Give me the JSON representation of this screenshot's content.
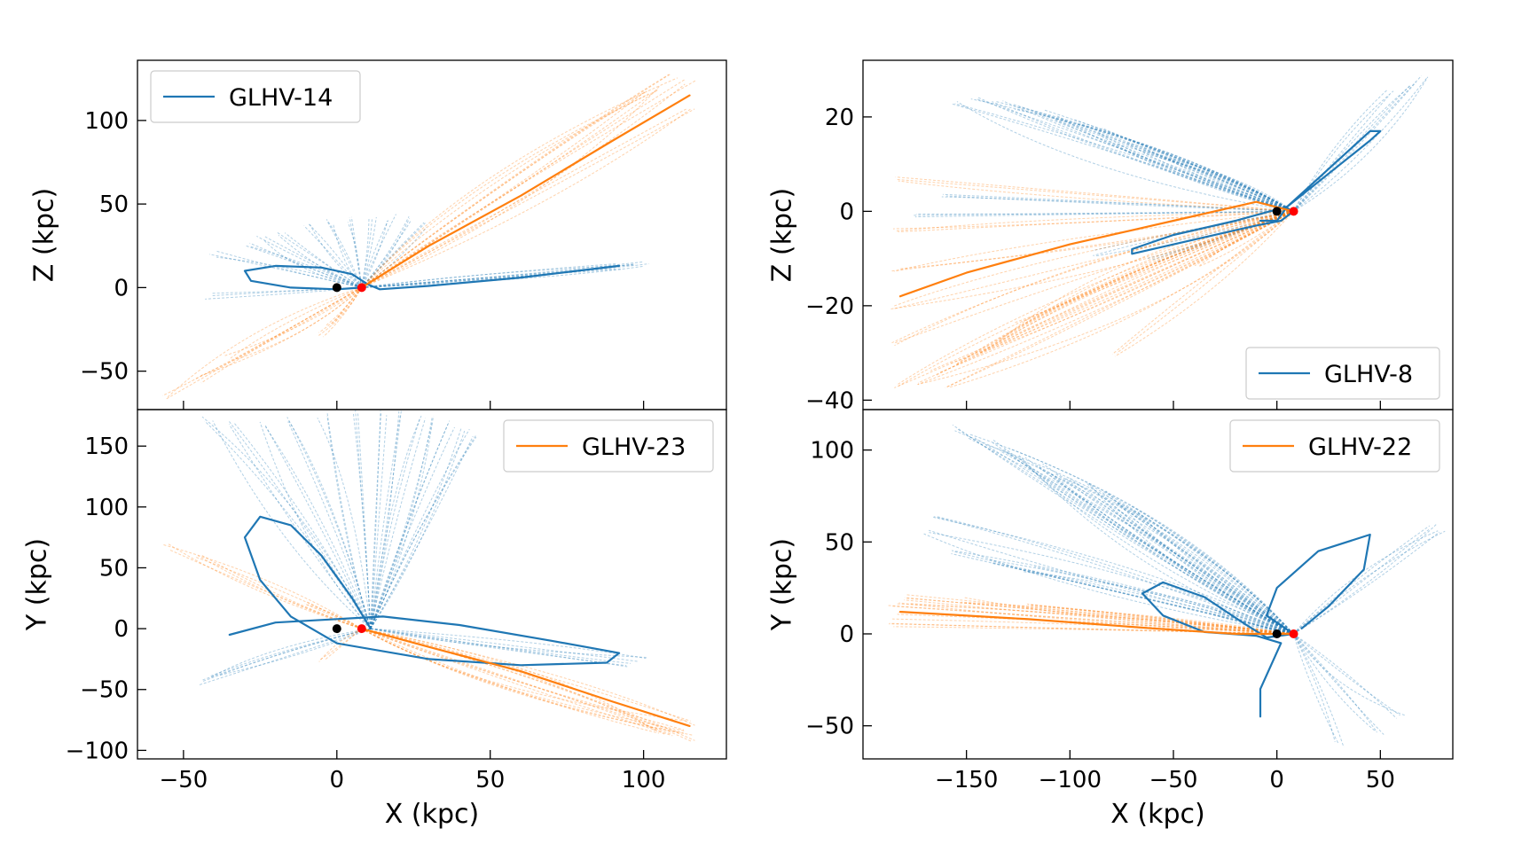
{
  "colors": {
    "blue": "#1f77b4",
    "orange": "#ff7f0e",
    "black": "#000000",
    "red": "#ff0000"
  },
  "chart_data": [
    {
      "type": "line",
      "id": "top-left",
      "xlim": [
        -65,
        127
      ],
      "ylim": [
        -73,
        136
      ],
      "xticks": [
        -50,
        0,
        50,
        100
      ],
      "show_xtick_labels": false,
      "yticks": [
        -50,
        0,
        50,
        100
      ],
      "ytick_labels": [
        "−50",
        "0",
        "50",
        "100"
      ],
      "xlabel": "",
      "ylabel": "Z (kpc)",
      "legend": {
        "label": "GLHV-14",
        "color": "blue",
        "position": "top-left"
      },
      "markers": [
        {
          "x": 0,
          "y": 0,
          "color": "black"
        },
        {
          "x": 8.1,
          "y": 0,
          "color": "red"
        }
      ],
      "series": [
        {
          "color": "blue",
          "style": "solid",
          "points": [
            [
              8,
              0
            ],
            [
              0,
              -1
            ],
            [
              -15,
              0
            ],
            [
              -28,
              4
            ],
            [
              -30,
              10
            ],
            [
              -20,
              13
            ],
            [
              -5,
              12
            ],
            [
              5,
              8
            ],
            [
              10,
              2
            ],
            [
              14,
              -1
            ],
            [
              30,
              1
            ],
            [
              60,
              6
            ],
            [
              92,
              13
            ]
          ]
        },
        {
          "color": "orange",
          "style": "solid",
          "points": [
            [
              8,
              0
            ],
            [
              30,
              25
            ],
            [
              60,
              55
            ],
            [
              90,
              88
            ],
            [
              115,
              115
            ]
          ]
        }
      ],
      "fans": [
        {
          "color": "blue",
          "origin": [
            8,
            0
          ],
          "ends": [
            [
              -42,
              -5
            ],
            [
              -40,
              20
            ],
            [
              -30,
              25
            ],
            [
              -25,
              30
            ],
            [
              -18,
              33
            ],
            [
              -10,
              37
            ],
            [
              -2,
              40
            ],
            [
              5,
              41
            ],
            [
              12,
              42
            ],
            [
              18,
              42
            ],
            [
              25,
              42
            ],
            [
              30,
              38
            ],
            [
              92,
              13
            ],
            [
              96,
              15
            ],
            [
              100,
              14
            ]
          ]
        },
        {
          "color": "orange",
          "origin": [
            8,
            0
          ],
          "ends": [
            [
              115,
              123
            ],
            [
              110,
              126
            ],
            [
              105,
              120
            ],
            [
              100,
              118
            ],
            [
              115,
              108
            ],
            [
              -55,
              -65
            ],
            [
              -45,
              -55
            ],
            [
              -35,
              -42
            ],
            [
              -5,
              -28
            ],
            [
              -2,
              -22
            ]
          ]
        }
      ]
    },
    {
      "type": "line",
      "id": "top-right",
      "xlim": [
        -200,
        85
      ],
      "ylim": [
        -42,
        32
      ],
      "xticks": [
        -150,
        -100,
        -50,
        0,
        50
      ],
      "show_xtick_labels": false,
      "yticks": [
        -40,
        -20,
        0,
        20
      ],
      "ytick_labels": [
        "−40",
        "−20",
        "0",
        "20"
      ],
      "xlabel": "",
      "ylabel": "Z (kpc)",
      "legend": {
        "label": "GLHV-8",
        "color": "blue",
        "position": "bottom-right"
      },
      "markers": [
        {
          "x": 0,
          "y": 0,
          "color": "black"
        },
        {
          "x": 8.1,
          "y": 0,
          "color": "red"
        }
      ],
      "series": [
        {
          "color": "blue",
          "style": "solid",
          "points": [
            [
              8,
              0
            ],
            [
              2,
              -2
            ],
            [
              -10,
              -3
            ],
            [
              -40,
              -6
            ],
            [
              -70,
              -9
            ],
            [
              -70,
              -8
            ],
            [
              -50,
              -5
            ],
            [
              -20,
              -2
            ],
            [
              5,
              1
            ],
            [
              25,
              8
            ],
            [
              45,
              15
            ],
            [
              50,
              17
            ],
            [
              45,
              17
            ],
            [
              30,
              11
            ],
            [
              15,
              5
            ],
            [
              5,
              1
            ],
            [
              0,
              -2
            ],
            [
              -8,
              -2
            ]
          ]
        },
        {
          "color": "orange",
          "style": "solid",
          "points": [
            [
              8,
              0
            ],
            [
              -10,
              2
            ],
            [
              -50,
              -2
            ],
            [
              -100,
              -7
            ],
            [
              -150,
              -13
            ],
            [
              -182,
              -18
            ]
          ]
        }
      ],
      "fans": [
        {
          "color": "blue",
          "origin": [
            8,
            0
          ],
          "ends": [
            [
              -155,
              23
            ],
            [
              -145,
              24
            ],
            [
              -135,
              23
            ],
            [
              -125,
              22
            ],
            [
              -115,
              21
            ],
            [
              -105,
              20
            ],
            [
              -95,
              19
            ],
            [
              -85,
              17
            ],
            [
              -75,
              15
            ],
            [
              -65,
              13
            ],
            [
              -55,
              11
            ],
            [
              -160,
              3
            ],
            [
              -175,
              -1
            ],
            [
              -90,
              -9
            ],
            [
              -60,
              -10
            ],
            [
              55,
              25
            ],
            [
              65,
              27
            ],
            [
              72,
              29
            ]
          ]
        },
        {
          "color": "orange",
          "origin": [
            8,
            0
          ],
          "ends": [
            [
              -185,
              -37
            ],
            [
              -175,
              -36
            ],
            [
              -165,
              -34
            ],
            [
              -155,
              -32
            ],
            [
              -145,
              -30
            ],
            [
              -135,
              -27
            ],
            [
              -125,
              -24
            ],
            [
              -185,
              -28
            ],
            [
              -185,
              -20
            ],
            [
              -185,
              -12
            ],
            [
              -185,
              -4
            ],
            [
              -185,
              7
            ],
            [
              -160,
              -38
            ],
            [
              -40,
              -12
            ],
            [
              -80,
              -30
            ]
          ]
        }
      ]
    },
    {
      "type": "line",
      "id": "bottom-left",
      "xlim": [
        -65,
        127
      ],
      "ylim": [
        -107,
        180
      ],
      "xticks": [
        -50,
        0,
        50,
        100
      ],
      "show_xtick_labels": true,
      "xtick_labels": [
        "−50",
        "0",
        "50",
        "100"
      ],
      "yticks": [
        -100,
        -50,
        0,
        50,
        100,
        150
      ],
      "ytick_labels": [
        "−100",
        "−50",
        "0",
        "50",
        "100",
        "150"
      ],
      "xlabel": "X (kpc)",
      "ylabel": "Y (kpc)",
      "legend": {
        "label": "GLHV-23",
        "color": "orange",
        "position": "top-right"
      },
      "markers": [
        {
          "x": 0,
          "y": 0,
          "color": "black"
        },
        {
          "x": 8.1,
          "y": 0,
          "color": "red"
        }
      ],
      "series": [
        {
          "color": "blue",
          "style": "solid",
          "points": [
            [
              11,
              0
            ],
            [
              5,
              25
            ],
            [
              -5,
              60
            ],
            [
              -15,
              85
            ],
            [
              -25,
              92
            ],
            [
              -30,
              75
            ],
            [
              -25,
              40
            ],
            [
              -15,
              10
            ],
            [
              0,
              -12
            ],
            [
              30,
              -25
            ],
            [
              60,
              -30
            ],
            [
              88,
              -28
            ],
            [
              92,
              -20
            ],
            [
              70,
              -10
            ],
            [
              40,
              3
            ],
            [
              15,
              10
            ],
            [
              -20,
              5
            ],
            [
              -35,
              -5
            ]
          ]
        },
        {
          "color": "orange",
          "style": "solid",
          "points": [
            [
              8,
              0
            ],
            [
              30,
              -15
            ],
            [
              60,
              -35
            ],
            [
              90,
              -60
            ],
            [
              115,
              -80
            ]
          ]
        }
      ],
      "fans": [
        {
          "color": "blue",
          "origin": [
            11,
            0
          ],
          "ends": [
            [
              -42,
              172
            ],
            [
              -35,
              170
            ],
            [
              -25,
              168
            ],
            [
              -15,
              172
            ],
            [
              -5,
              175
            ],
            [
              5,
              178
            ],
            [
              15,
              178
            ],
            [
              22,
              177
            ],
            [
              28,
              175
            ],
            [
              33,
              172
            ],
            [
              38,
              168
            ],
            [
              42,
              165
            ],
            [
              46,
              158
            ],
            [
              -45,
              -45
            ],
            [
              -40,
              -40
            ],
            [
              95,
              -30
            ],
            [
              100,
              -25
            ]
          ]
        },
        {
          "color": "orange",
          "origin": [
            8,
            0
          ],
          "ends": [
            [
              115,
              -90
            ],
            [
              115,
              -84
            ],
            [
              115,
              -78
            ],
            [
              110,
              -88
            ],
            [
              105,
              -85
            ],
            [
              -55,
              68
            ],
            [
              -45,
              60
            ],
            [
              -10,
              20
            ],
            [
              -5,
              -25
            ]
          ]
        }
      ]
    },
    {
      "type": "line",
      "id": "bottom-right",
      "xlim": [
        -200,
        85
      ],
      "ylim": [
        -68,
        122
      ],
      "xticks": [
        -150,
        -100,
        -50,
        0,
        50
      ],
      "show_xtick_labels": true,
      "xtick_labels": [
        "−150",
        "−100",
        "−50",
        "0",
        "50"
      ],
      "yticks": [
        -50,
        0,
        50,
        100
      ],
      "ytick_labels": [
        "−50",
        "0",
        "50",
        "100"
      ],
      "xlabel": "X (kpc)",
      "ylabel": "Y (kpc)",
      "legend": {
        "label": "GLHV-22",
        "color": "orange",
        "position": "top-right"
      },
      "markers": [
        {
          "x": 0,
          "y": 0,
          "color": "black"
        },
        {
          "x": 8.1,
          "y": 0,
          "color": "red"
        }
      ],
      "series": [
        {
          "color": "blue",
          "style": "solid",
          "points": [
            [
              8,
              0
            ],
            [
              -5,
              -2
            ],
            [
              -15,
              5
            ],
            [
              -35,
              20
            ],
            [
              -55,
              28
            ],
            [
              -65,
              22
            ],
            [
              -55,
              10
            ],
            [
              -35,
              1
            ],
            [
              -10,
              -1
            ],
            [
              2,
              -5
            ],
            [
              -8,
              -30
            ],
            [
              -8,
              -45
            ]
          ]
        },
        {
          "color": "blue",
          "style": "solid",
          "points": [
            [
              8,
              0
            ],
            [
              -5,
              10
            ],
            [
              0,
              25
            ],
            [
              20,
              45
            ],
            [
              45,
              54
            ],
            [
              42,
              35
            ],
            [
              25,
              15
            ],
            [
              12,
              3
            ]
          ]
        },
        {
          "color": "orange",
          "style": "solid",
          "points": [
            [
              8,
              0
            ],
            [
              -20,
              0
            ],
            [
              -60,
              3
            ],
            [
              -120,
              8
            ],
            [
              -182,
              12
            ]
          ]
        }
      ],
      "fans": [
        {
          "color": "blue",
          "origin": [
            8,
            0
          ],
          "ends": [
            [
              -155,
              112
            ],
            [
              -148,
              108
            ],
            [
              -140,
              104
            ],
            [
              -132,
              100
            ],
            [
              -124,
              96
            ],
            [
              -116,
              92
            ],
            [
              -108,
              88
            ],
            [
              -100,
              84
            ],
            [
              -92,
              80
            ],
            [
              -84,
              76
            ],
            [
              -76,
              72
            ],
            [
              -68,
              68
            ],
            [
              -165,
              65
            ],
            [
              -170,
              55
            ],
            [
              -155,
              45
            ],
            [
              -140,
              40
            ],
            [
              -120,
              35
            ],
            [
              75,
              58
            ],
            [
              80,
              55
            ],
            [
              60,
              -45
            ],
            [
              50,
              -55
            ],
            [
              30,
              -60
            ],
            [
              -30,
              12
            ]
          ]
        },
        {
          "color": "orange",
          "origin": [
            8,
            0
          ],
          "ends": [
            [
              -185,
              15
            ],
            [
              -185,
              10
            ],
            [
              -185,
              5
            ],
            [
              -182,
              20
            ],
            [
              -180,
              18
            ],
            [
              -150,
              18
            ],
            [
              -120,
              15
            ]
          ]
        }
      ]
    }
  ]
}
